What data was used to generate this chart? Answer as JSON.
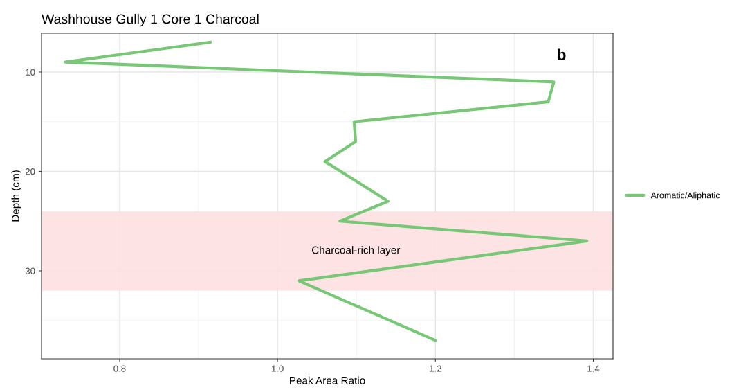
{
  "chart_data": {
    "type": "line",
    "title": "Washhouse Gully 1 Core 1 Charcoal",
    "xlabel": "Peak Area Ratio",
    "ylabel": "Depth (cm)",
    "orientation": "horizontal",
    "series": [
      {
        "name": "Aromatic/Aliphatic",
        "color": "#77c777",
        "values": [
          0.915,
          0.731,
          1.35,
          1.343,
          1.097,
          1.099,
          1.06,
          1.1,
          1.14,
          1.079,
          1.392,
          1.027,
          1.2
        ],
        "x": [
          7,
          9,
          11,
          13,
          15,
          17,
          19,
          21,
          23,
          25,
          27,
          31,
          37
        ]
      }
    ],
    "xlim": [
      0.701,
      1.425
    ],
    "xticks": [
      {
        "value": 0.8,
        "label": "0.8"
      },
      {
        "value": 1.0,
        "label": "1.0"
      },
      {
        "value": 1.2,
        "label": "1.2"
      },
      {
        "value": 1.4,
        "label": "1.4"
      }
    ],
    "ylim": [
      38.85,
      6.1
    ],
    "yticks": [
      10,
      20,
      30
    ],
    "bands": [
      {
        "axis": "y",
        "from": 24,
        "to": 32,
        "label": "Charcoal-rich layer",
        "color": "#fde0e0"
      }
    ],
    "annotations": [
      "b"
    ],
    "grid": true,
    "legend": "right",
    "line_style": "solid",
    "marker": "none"
  }
}
